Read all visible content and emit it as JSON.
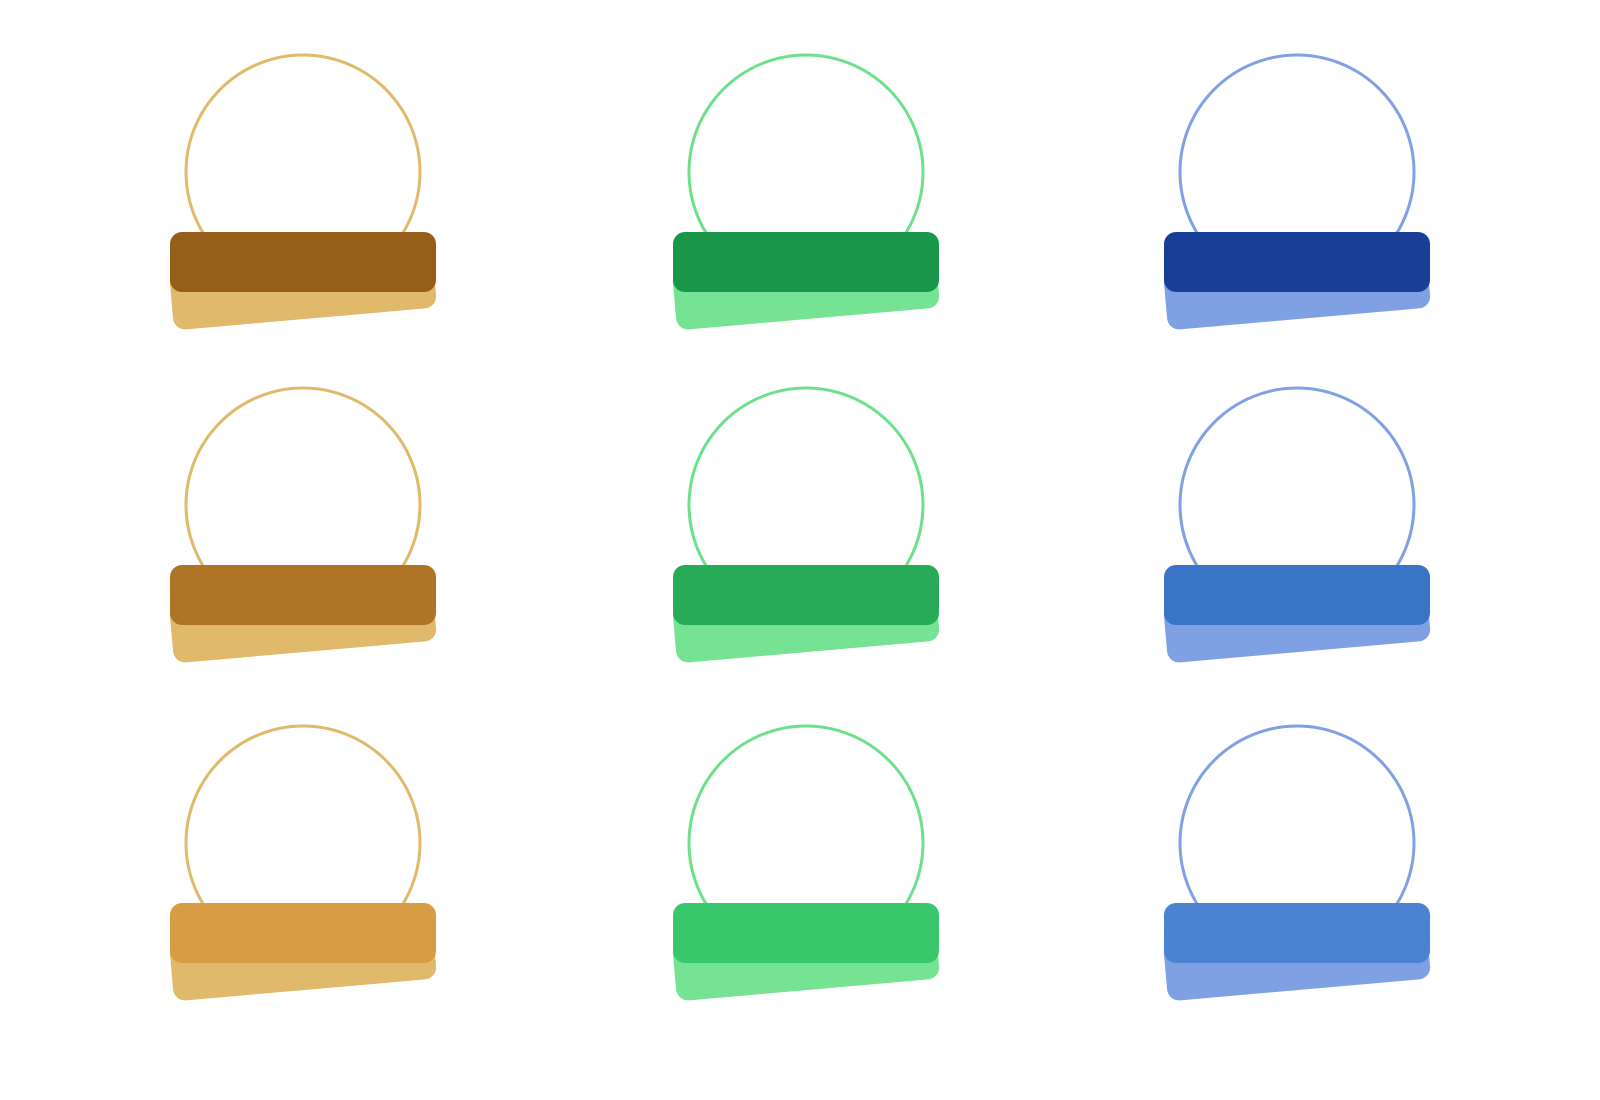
{
  "badges": [
    {
      "outline_color": "#e0b96a",
      "back_tab_color": "#e0b96a",
      "front_tab_color": "#955f19"
    },
    {
      "outline_color": "#6ee08c",
      "back_tab_color": "#76e294",
      "front_tab_color": "#199649"
    },
    {
      "outline_color": "#7fa1e4",
      "back_tab_color": "#7fa1e4",
      "front_tab_color": "#183f97"
    },
    {
      "outline_color": "#e0b96a",
      "back_tab_color": "#e0b96a",
      "front_tab_color": "#af7526"
    },
    {
      "outline_color": "#6ee08c",
      "back_tab_color": "#76e294",
      "front_tab_color": "#28ab59"
    },
    {
      "outline_color": "#7fa1e4",
      "back_tab_color": "#7fa1e4",
      "front_tab_color": "#3a74c6"
    },
    {
      "outline_color": "#e0b96a",
      "back_tab_color": "#e0b96a",
      "front_tab_color": "#d89d44"
    },
    {
      "outline_color": "#6ee08c",
      "back_tab_color": "#76e294",
      "front_tab_color": "#39c76b"
    },
    {
      "outline_color": "#7fa1e4",
      "back_tab_color": "#7fa1e4",
      "front_tab_color": "#4a83d1"
    }
  ]
}
